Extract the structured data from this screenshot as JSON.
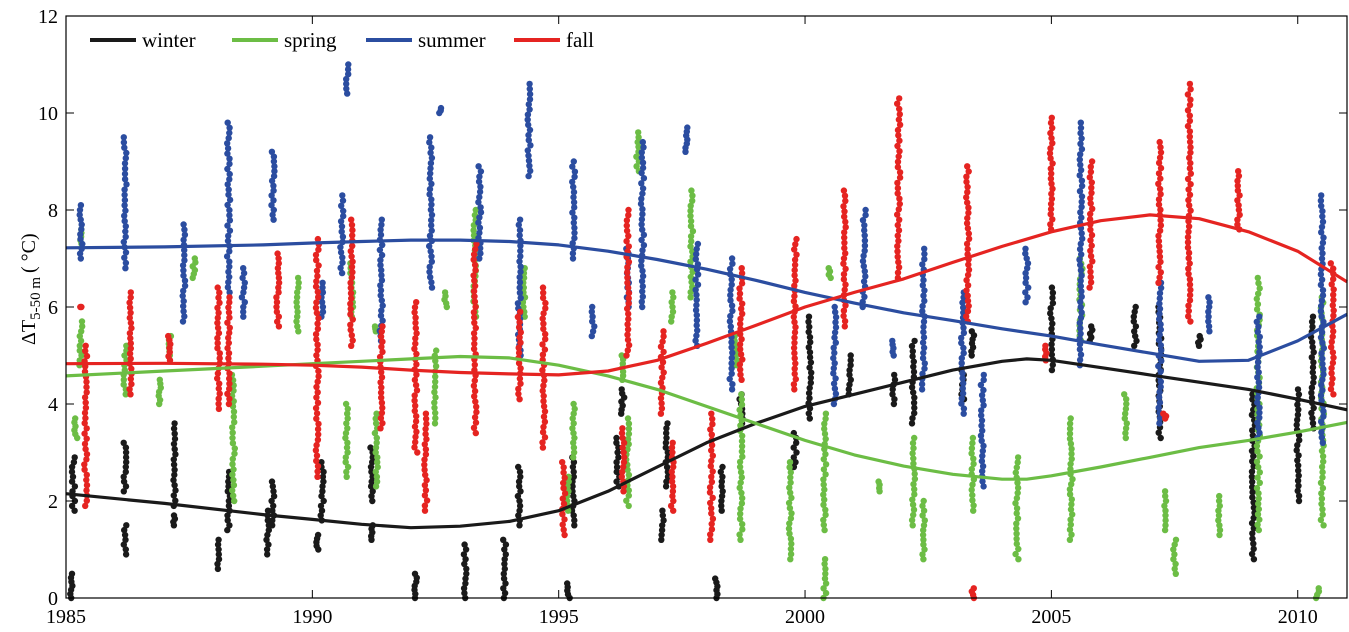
{
  "chart_data": {
    "type": "scatter",
    "title": "",
    "xlabel": "",
    "ylabel": {
      "main": "ΔT",
      "sub": "5-50 m",
      "unit": "( °C)"
    },
    "xlim": [
      1985,
      2011
    ],
    "ylim": [
      0,
      12
    ],
    "xticks": [
      "1985",
      "1990",
      "1995",
      "2000",
      "2005",
      "2010"
    ],
    "yticks": [
      "0",
      "2",
      "4",
      "6",
      "8",
      "10",
      "12"
    ],
    "grid": false,
    "legend_position": "top-left",
    "series": [
      {
        "name": "winter",
        "color": "#1a1a1a",
        "trend": [
          [
            1985,
            2.15
          ],
          [
            1987,
            1.95
          ],
          [
            1989,
            1.72
          ],
          [
            1990,
            1.62
          ],
          [
            1991,
            1.52
          ],
          [
            1992,
            1.45
          ],
          [
            1993,
            1.48
          ],
          [
            1994,
            1.58
          ],
          [
            1995,
            1.8
          ],
          [
            1996,
            2.2
          ],
          [
            1997,
            2.7
          ],
          [
            1998,
            3.2
          ],
          [
            1999,
            3.6
          ],
          [
            2000,
            3.95
          ],
          [
            2001,
            4.2
          ],
          [
            2002,
            4.45
          ],
          [
            2003,
            4.7
          ],
          [
            2004,
            4.88
          ],
          [
            2004.5,
            4.93
          ],
          [
            2005,
            4.9
          ],
          [
            2006,
            4.75
          ],
          [
            2007,
            4.6
          ],
          [
            2008,
            4.45
          ],
          [
            2009,
            4.3
          ],
          [
            2010,
            4.1
          ],
          [
            2011,
            3.88
          ]
        ],
        "clusters": [
          [
            1985.1,
            0.0,
            0.5
          ],
          [
            1985.15,
            1.8,
            2.9
          ],
          [
            1986.2,
            0.9,
            1.5
          ],
          [
            1986.2,
            2.2,
            3.2
          ],
          [
            1987.2,
            1.5,
            1.7
          ],
          [
            1987.2,
            1.9,
            3.6
          ],
          [
            1988.1,
            0.6,
            1.2
          ],
          [
            1988.3,
            1.4,
            2.6
          ],
          [
            1989.1,
            0.9,
            1.8
          ],
          [
            1989.2,
            1.5,
            2.4
          ],
          [
            1990.1,
            1.0,
            1.3
          ],
          [
            1990.2,
            1.6,
            2.8
          ],
          [
            1991.2,
            1.2,
            1.5
          ],
          [
            1991.2,
            2.0,
            3.1
          ],
          [
            1992.1,
            0.0,
            0.5
          ],
          [
            1993.1,
            0.0,
            1.1
          ],
          [
            1993.9,
            0.0,
            1.2
          ],
          [
            1994.2,
            1.5,
            2.7
          ],
          [
            1995.2,
            0.0,
            0.3
          ],
          [
            1995.3,
            1.5,
            2.9
          ],
          [
            1996.2,
            2.3,
            3.3
          ],
          [
            1996.3,
            3.8,
            4.3
          ],
          [
            1997.1,
            1.2,
            1.8
          ],
          [
            1997.2,
            2.3,
            3.6
          ],
          [
            1998.2,
            0.0,
            0.4
          ],
          [
            1998.3,
            1.8,
            2.7
          ],
          [
            1998.7,
            3.5,
            4.2
          ],
          [
            1999.8,
            2.7,
            3.4
          ],
          [
            2000.1,
            3.7,
            5.8
          ],
          [
            2000.9,
            4.2,
            5.0
          ],
          [
            2001.8,
            4.0,
            4.6
          ],
          [
            2002.2,
            3.6,
            5.3
          ],
          [
            2003.2,
            4.1,
            4.7
          ],
          [
            2003.4,
            5.0,
            5.5
          ],
          [
            2005.0,
            4.7,
            6.4
          ],
          [
            2005.8,
            5.3,
            5.6
          ],
          [
            2006.7,
            5.2,
            6.0
          ],
          [
            2007.2,
            3.3,
            6.0
          ],
          [
            2008.0,
            5.2,
            5.4
          ],
          [
            2009.1,
            0.8,
            4.2
          ],
          [
            2010.0,
            2.0,
            4.3
          ],
          [
            2010.3,
            3.5,
            5.8
          ]
        ]
      },
      {
        "name": "spring",
        "color": "#6cbd45",
        "trend": [
          [
            1985,
            4.58
          ],
          [
            1987,
            4.68
          ],
          [
            1989,
            4.78
          ],
          [
            1990,
            4.83
          ],
          [
            1991,
            4.88
          ],
          [
            1992,
            4.93
          ],
          [
            1993,
            4.98
          ],
          [
            1994,
            4.95
          ],
          [
            1995,
            4.8
          ],
          [
            1996,
            4.58
          ],
          [
            1997,
            4.3
          ],
          [
            1998,
            3.95
          ],
          [
            1999,
            3.6
          ],
          [
            2000,
            3.25
          ],
          [
            2001,
            2.95
          ],
          [
            2002,
            2.72
          ],
          [
            2003,
            2.55
          ],
          [
            2004,
            2.45
          ],
          [
            2004.5,
            2.45
          ],
          [
            2005,
            2.52
          ],
          [
            2006,
            2.7
          ],
          [
            2007,
            2.9
          ],
          [
            2008,
            3.1
          ],
          [
            2009,
            3.25
          ],
          [
            2010,
            3.42
          ],
          [
            2011,
            3.62
          ]
        ],
        "clusters": [
          [
            1985.2,
            3.3,
            3.7
          ],
          [
            1985.3,
            4.8,
            5.7
          ],
          [
            1985.3,
            7.3,
            7.6
          ],
          [
            1986.2,
            4.2,
            5.2
          ],
          [
            1986.9,
            4.0,
            4.5
          ],
          [
            1987.1,
            5.0,
            5.4
          ],
          [
            1987.6,
            6.6,
            7.0
          ],
          [
            1988.4,
            2.0,
            4.6
          ],
          [
            1989.7,
            5.5,
            6.6
          ],
          [
            1990.7,
            2.5,
            4.0
          ],
          [
            1990.8,
            5.8,
            6.9
          ],
          [
            1991.3,
            2.3,
            3.8
          ],
          [
            1991.3,
            5.5,
            5.6
          ],
          [
            1992.5,
            3.6,
            5.1
          ],
          [
            1992.7,
            6.0,
            6.3
          ],
          [
            1993.3,
            5.8,
            8.0
          ],
          [
            1994.3,
            5.8,
            6.8
          ],
          [
            1995.2,
            1.8,
            2.5
          ],
          [
            1995.3,
            2.9,
            4.0
          ],
          [
            1996.3,
            4.5,
            5.0
          ],
          [
            1996.4,
            1.9,
            3.7
          ],
          [
            1996.6,
            8.8,
            9.6
          ],
          [
            1997.3,
            5.7,
            6.3
          ],
          [
            1997.7,
            6.2,
            8.4
          ],
          [
            1998.6,
            4.8,
            5.4
          ],
          [
            1998.7,
            1.2,
            4.2
          ],
          [
            1999.7,
            0.8,
            2.8
          ],
          [
            2000.4,
            1.4,
            3.8
          ],
          [
            2000.4,
            0.0,
            0.8
          ],
          [
            2000.5,
            6.6,
            6.8
          ],
          [
            2001.5,
            2.2,
            2.4
          ],
          [
            2002.2,
            1.5,
            3.3
          ],
          [
            2002.4,
            0.8,
            2.0
          ],
          [
            2003.4,
            1.8,
            3.3
          ],
          [
            2004.3,
            0.8,
            2.9
          ],
          [
            2005.4,
            1.2,
            3.7
          ],
          [
            2005.6,
            5.3,
            7.0
          ],
          [
            2006.5,
            3.3,
            4.2
          ],
          [
            2007.3,
            1.4,
            2.2
          ],
          [
            2007.5,
            0.5,
            1.2
          ],
          [
            2008.4,
            1.3,
            2.1
          ],
          [
            2009.2,
            1.4,
            6.6
          ],
          [
            2010.4,
            0.0,
            0.2
          ],
          [
            2010.5,
            1.5,
            6.2
          ]
        ]
      },
      {
        "name": "summer",
        "color": "#2b4da0",
        "trend": [
          [
            1985,
            7.22
          ],
          [
            1987,
            7.24
          ],
          [
            1989,
            7.28
          ],
          [
            1990,
            7.32
          ],
          [
            1991,
            7.35
          ],
          [
            1992,
            7.38
          ],
          [
            1993,
            7.38
          ],
          [
            1994,
            7.35
          ],
          [
            1995,
            7.28
          ],
          [
            1996,
            7.15
          ],
          [
            1997,
            6.98
          ],
          [
            1998,
            6.78
          ],
          [
            1999,
            6.55
          ],
          [
            2000,
            6.3
          ],
          [
            2001,
            6.08
          ],
          [
            2002,
            5.88
          ],
          [
            2003,
            5.72
          ],
          [
            2004,
            5.55
          ],
          [
            2005,
            5.4
          ],
          [
            2006,
            5.22
          ],
          [
            2007,
            5.05
          ],
          [
            2008,
            4.88
          ],
          [
            2009,
            4.9
          ],
          [
            2010,
            5.3
          ],
          [
            2011,
            5.85
          ]
        ],
        "clusters": [
          [
            1985.3,
            7.0,
            8.1
          ],
          [
            1986.2,
            6.8,
            9.5
          ],
          [
            1987.4,
            5.7,
            7.7
          ],
          [
            1988.3,
            6.3,
            9.8
          ],
          [
            1988.6,
            5.8,
            6.8
          ],
          [
            1989.2,
            7.8,
            9.2
          ],
          [
            1990.2,
            5.8,
            6.5
          ],
          [
            1990.6,
            6.7,
            8.3
          ],
          [
            1990.7,
            10.4,
            11.0
          ],
          [
            1991.4,
            5.3,
            7.8
          ],
          [
            1992.4,
            6.4,
            9.5
          ],
          [
            1992.6,
            10.0,
            10.1
          ],
          [
            1993.4,
            7.0,
            8.9
          ],
          [
            1994.2,
            5.0,
            7.8
          ],
          [
            1994.4,
            8.7,
            10.6
          ],
          [
            1995.3,
            7.0,
            9.0
          ],
          [
            1995.7,
            5.4,
            6.0
          ],
          [
            1996.4,
            6.0,
            7.2
          ],
          [
            1996.7,
            6.0,
            9.4
          ],
          [
            1997.6,
            9.2,
            9.7
          ],
          [
            1997.8,
            5.2,
            7.3
          ],
          [
            1998.5,
            4.3,
            7.0
          ],
          [
            2000.6,
            4.0,
            6.0
          ],
          [
            2001.2,
            6.0,
            8.0
          ],
          [
            2001.8,
            5.0,
            5.3
          ],
          [
            2002.4,
            4.3,
            7.2
          ],
          [
            2003.2,
            3.8,
            6.3
          ],
          [
            2003.6,
            2.3,
            4.6
          ],
          [
            2004.5,
            6.1,
            7.2
          ],
          [
            2005.6,
            4.8,
            9.8
          ],
          [
            2007.2,
            3.6,
            6.5
          ],
          [
            2008.2,
            5.5,
            6.2
          ],
          [
            2009.2,
            3.3,
            5.8
          ],
          [
            2010.5,
            3.2,
            8.3
          ]
        ]
      },
      {
        "name": "fall",
        "color": "#e52421",
        "trend": [
          [
            1985,
            4.83
          ],
          [
            1987,
            4.84
          ],
          [
            1989,
            4.82
          ],
          [
            1990,
            4.8
          ],
          [
            1991,
            4.76
          ],
          [
            1992,
            4.7
          ],
          [
            1993,
            4.65
          ],
          [
            1994,
            4.62
          ],
          [
            1995,
            4.6
          ],
          [
            1996,
            4.68
          ],
          [
            1997,
            4.9
          ],
          [
            1998,
            5.25
          ],
          [
            1999,
            5.62
          ],
          [
            2000,
            6.0
          ],
          [
            2001,
            6.3
          ],
          [
            2002,
            6.58
          ],
          [
            2003,
            6.92
          ],
          [
            2004,
            7.25
          ],
          [
            2005,
            7.55
          ],
          [
            2006,
            7.78
          ],
          [
            2007,
            7.9
          ],
          [
            2008,
            7.82
          ],
          [
            2009,
            7.55
          ],
          [
            2010,
            7.15
          ],
          [
            2011,
            6.52
          ]
        ],
        "clusters": [
          [
            1985.3,
            6.0,
            6.0
          ],
          [
            1985.4,
            1.9,
            5.2
          ],
          [
            1986.3,
            4.2,
            6.3
          ],
          [
            1987.1,
            4.9,
            5.4
          ],
          [
            1988.1,
            3.9,
            6.4
          ],
          [
            1988.3,
            4.0,
            6.2
          ],
          [
            1989.3,
            5.6,
            7.1
          ],
          [
            1990.1,
            2.5,
            7.4
          ],
          [
            1990.8,
            5.2,
            7.8
          ],
          [
            1991.4,
            3.5,
            5.6
          ],
          [
            1992.1,
            3.0,
            6.1
          ],
          [
            1992.3,
            1.8,
            3.8
          ],
          [
            1993.3,
            3.4,
            7.3
          ],
          [
            1994.2,
            4.1,
            5.9
          ],
          [
            1994.7,
            3.1,
            6.4
          ],
          [
            1995.1,
            1.3,
            2.8
          ],
          [
            1996.3,
            2.2,
            3.5
          ],
          [
            1996.4,
            5.0,
            8.0
          ],
          [
            1997.1,
            3.8,
            5.5
          ],
          [
            1997.3,
            1.8,
            3.2
          ],
          [
            1998.1,
            1.2,
            3.8
          ],
          [
            1998.7,
            4.5,
            6.8
          ],
          [
            1999.8,
            4.3,
            7.4
          ],
          [
            2000.8,
            5.6,
            8.4
          ],
          [
            2001.9,
            6.6,
            10.3
          ],
          [
            2003.3,
            5.7,
            8.9
          ],
          [
            2003.4,
            0.0,
            0.2
          ],
          [
            2004.9,
            4.9,
            5.2
          ],
          [
            2005.0,
            7.6,
            9.9
          ],
          [
            2005.8,
            6.4,
            9.0
          ],
          [
            2007.2,
            6.5,
            9.4
          ],
          [
            2007.3,
            3.7,
            3.8
          ],
          [
            2007.8,
            5.7,
            10.6
          ],
          [
            2008.8,
            7.6,
            8.8
          ],
          [
            2010.7,
            4.2,
            6.9
          ]
        ]
      }
    ]
  }
}
